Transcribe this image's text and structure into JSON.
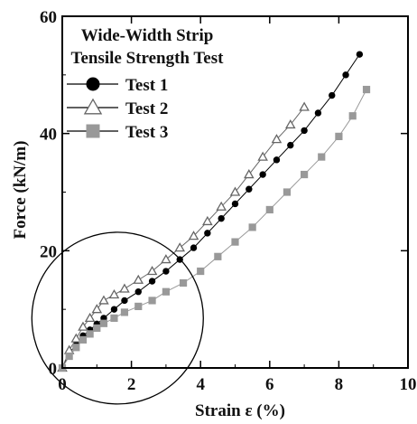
{
  "chart_data": {
    "type": "line",
    "title": "Wide-Width Strip\nTensile Strength Test",
    "title_lines": [
      "Wide-Width Strip",
      "Tensile Strength Test"
    ],
    "xlabel": "Strain ε (%)",
    "ylabel": "Force (kN/m)",
    "xlim": [
      0,
      10
    ],
    "ylim": [
      0,
      60
    ],
    "x_ticks": [
      "0",
      "2",
      "4",
      "6",
      "8",
      "10"
    ],
    "y_ticks": [
      "0",
      "20",
      "40",
      "60"
    ],
    "grid": false,
    "legend_position": "top-left",
    "annotation": "circle around the initial low-strain region (strain 0–3%)",
    "series": [
      {
        "name": "Test 1",
        "marker": "circle-filled",
        "color": "#000000",
        "x": [
          0,
          0.2,
          0.4,
          0.6,
          0.8,
          1.0,
          1.2,
          1.5,
          1.8,
          2.2,
          2.6,
          3.0,
          3.4,
          3.8,
          4.2,
          4.6,
          5.0,
          5.4,
          5.8,
          6.2,
          6.6,
          7.0,
          7.4,
          7.8,
          8.2,
          8.6
        ],
        "y": [
          0,
          2.5,
          4.0,
          5.5,
          6.5,
          7.5,
          8.5,
          10.0,
          11.5,
          13.0,
          14.8,
          16.5,
          18.5,
          20.5,
          23.0,
          25.5,
          28.0,
          30.5,
          33.0,
          35.5,
          38.0,
          40.5,
          43.5,
          46.5,
          50.0,
          53.5
        ]
      },
      {
        "name": "Test 2",
        "marker": "triangle",
        "color": "#666666",
        "x": [
          0,
          0.2,
          0.4,
          0.6,
          0.8,
          1.0,
          1.2,
          1.5,
          1.8,
          2.2,
          2.6,
          3.0,
          3.4,
          3.8,
          4.2,
          4.6,
          5.0,
          5.4,
          5.8,
          6.2,
          6.6,
          7.0
        ],
        "y": [
          0,
          3.0,
          5.0,
          7.0,
          8.5,
          10.0,
          11.5,
          12.5,
          13.5,
          15.0,
          16.5,
          18.5,
          20.5,
          22.5,
          25.0,
          27.5,
          30.0,
          33.0,
          36.0,
          39.0,
          41.5,
          44.5
        ]
      },
      {
        "name": "Test 3",
        "marker": "square",
        "color": "#999999",
        "x": [
          0,
          0.2,
          0.4,
          0.6,
          0.8,
          1.0,
          1.2,
          1.5,
          1.8,
          2.2,
          2.6,
          3.0,
          3.5,
          4.0,
          4.5,
          5.0,
          5.5,
          6.0,
          6.5,
          7.0,
          7.5,
          8.0,
          8.4,
          8.8
        ],
        "y": [
          0,
          2.0,
          3.5,
          4.8,
          5.8,
          6.8,
          7.6,
          8.5,
          9.5,
          10.5,
          11.5,
          13.0,
          14.5,
          16.5,
          19.0,
          21.5,
          24.0,
          27.0,
          30.0,
          33.0,
          36.0,
          39.5,
          43.0,
          47.5
        ]
      }
    ]
  }
}
